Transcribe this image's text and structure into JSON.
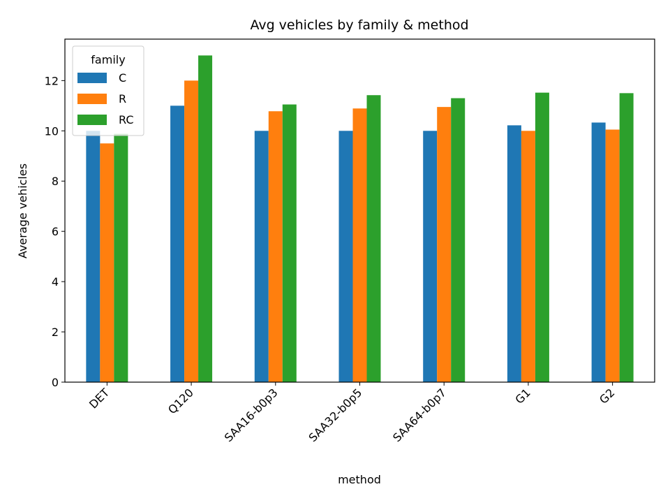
{
  "chart_data": {
    "type": "bar",
    "title": "Avg vehicles by family & method",
    "xlabel": "method",
    "ylabel": "Average vehicles",
    "categories": [
      "DET",
      "Q120",
      "SAA16-b0p3",
      "SAA32-b0p5",
      "SAA64-b0p7",
      "G1",
      "G2"
    ],
    "series": [
      {
        "name": "C",
        "color": "#1f77b4",
        "values": [
          10.0,
          11.0,
          10.0,
          10.0,
          10.0,
          10.22,
          10.33
        ]
      },
      {
        "name": "R",
        "color": "#ff7f0e",
        "values": [
          9.5,
          12.0,
          10.78,
          10.89,
          10.95,
          10.0,
          10.05
        ]
      },
      {
        "name": "RC",
        "color": "#2ca02c",
        "values": [
          9.88,
          13.0,
          11.05,
          11.42,
          11.3,
          11.52,
          11.5
        ]
      }
    ],
    "ylim": [
      0,
      13.65
    ],
    "yticks": [
      0,
      2,
      4,
      6,
      8,
      10,
      12
    ],
    "grid": false,
    "legend": {
      "title": "family",
      "position": "top-left"
    }
  }
}
